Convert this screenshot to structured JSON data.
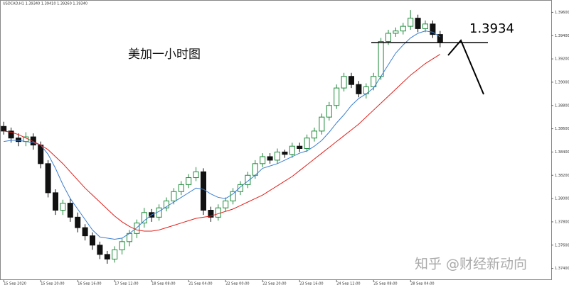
{
  "chart_data": {
    "type": "candlestick",
    "symbol_info": "USDCAD,H1  1.39340 1.39410 1.39260 1.39340",
    "title": "美加一小时图",
    "watermark": "知乎 @财经新动向",
    "level": 1.3934,
    "up_color": "#1f8a3a",
    "down_color": "#111111",
    "categories": [
      "15 Sep 2020",
      null,
      null,
      null,
      null,
      "15 Sep 20:00",
      null,
      null,
      null,
      null,
      "16 Sep 16:00",
      null,
      null,
      null,
      null,
      "17 Sep 12:00",
      null,
      null,
      null,
      null,
      "18 Sep 08:00",
      null,
      null,
      null,
      null,
      "21 Sep 04:00",
      null,
      null,
      null,
      null,
      "22 Sep 00:00",
      null,
      null,
      null,
      null,
      "22 Sep 20:00",
      null,
      null,
      null,
      null,
      "23 Sep 16:00",
      null,
      null,
      null,
      null,
      "24 Sep 12:00",
      null,
      null,
      null,
      null,
      "25 Sep 08:00",
      null,
      null,
      null,
      null,
      "28 Sep 04:00",
      null,
      null,
      null,
      null
    ],
    "open": [
      1.3862,
      1.3858,
      1.3852,
      1.3849,
      1.3853,
      1.3846,
      1.383,
      1.3805,
      1.379,
      1.3796,
      1.3784,
      1.3775,
      1.3768,
      1.376,
      1.3752,
      1.3748,
      1.3756,
      1.3763,
      1.377,
      1.3779,
      1.3788,
      1.3784,
      1.3792,
      1.3798,
      1.3806,
      1.3812,
      1.3818,
      1.3823,
      1.379,
      1.3784,
      1.3792,
      1.3798,
      1.3806,
      1.3812,
      1.382,
      1.383,
      1.3836,
      1.3833,
      1.384,
      1.3838,
      1.3845,
      1.3843,
      1.3852,
      1.3858,
      1.387,
      1.388,
      1.3895,
      1.3905,
      1.3898,
      1.389,
      1.3896,
      1.3905,
      1.3935,
      1.3942,
      1.3944,
      1.3948,
      1.3955,
      1.3946,
      1.395,
      1.3941
    ],
    "high": [
      1.3866,
      1.3861,
      1.3856,
      1.3857,
      1.3856,
      1.3849,
      1.3833,
      1.3808,
      1.3799,
      1.38,
      1.3788,
      1.3778,
      1.3771,
      1.3763,
      1.3755,
      1.3759,
      1.3766,
      1.3773,
      1.3782,
      1.3792,
      1.3791,
      1.3795,
      1.3801,
      1.3809,
      1.3815,
      1.3821,
      1.3827,
      1.3826,
      1.3793,
      1.3795,
      1.3801,
      1.3809,
      1.3815,
      1.3823,
      1.3833,
      1.3839,
      1.3839,
      1.3843,
      1.3842,
      1.3848,
      1.3848,
      1.3855,
      1.3861,
      1.3873,
      1.3883,
      1.3898,
      1.3908,
      1.3908,
      1.3901,
      1.3899,
      1.3908,
      1.3938,
      1.3945,
      1.3947,
      1.3951,
      1.3962,
      1.3958,
      1.3953,
      1.3953,
      1.3944
    ],
    "low": [
      1.3855,
      1.3848,
      1.3845,
      1.3845,
      1.3842,
      1.3826,
      1.3801,
      1.3786,
      1.3786,
      1.378,
      1.3771,
      1.3764,
      1.3756,
      1.3748,
      1.3744,
      1.3745,
      1.3752,
      1.3759,
      1.3766,
      1.3775,
      1.378,
      1.3781,
      1.3789,
      1.3795,
      1.3803,
      1.3809,
      1.3815,
      1.3786,
      1.378,
      1.3781,
      1.3789,
      1.3795,
      1.3803,
      1.3809,
      1.3817,
      1.3827,
      1.383,
      1.383,
      1.3835,
      1.3835,
      1.384,
      1.384,
      1.3849,
      1.3855,
      1.3867,
      1.3877,
      1.3892,
      1.3895,
      1.3887,
      1.3886,
      1.3893,
      1.3902,
      1.3932,
      1.3939,
      1.3941,
      1.3945,
      1.3943,
      1.3943,
      1.3938,
      1.393
    ],
    "close": [
      1.3858,
      1.3852,
      1.3849,
      1.3853,
      1.3846,
      1.383,
      1.3805,
      1.379,
      1.3796,
      1.3784,
      1.3775,
      1.3768,
      1.376,
      1.3752,
      1.3748,
      1.3756,
      1.3763,
      1.377,
      1.3779,
      1.3788,
      1.3784,
      1.3792,
      1.3798,
      1.3806,
      1.3812,
      1.3818,
      1.3823,
      1.379,
      1.3784,
      1.3792,
      1.3798,
      1.3806,
      1.3812,
      1.382,
      1.383,
      1.3836,
      1.3833,
      1.384,
      1.3838,
      1.3845,
      1.3843,
      1.3852,
      1.3858,
      1.387,
      1.388,
      1.3895,
      1.3905,
      1.3898,
      1.389,
      1.3896,
      1.3905,
      1.3935,
      1.3942,
      1.3944,
      1.3948,
      1.3955,
      1.3946,
      1.395,
      1.3941,
      1.3934
    ],
    "series": [
      {
        "color": "#3b7fd1",
        "values": [
          1.3849,
          1.385,
          1.385,
          1.3849,
          1.3848,
          1.3846,
          1.3838,
          1.3826,
          1.3812,
          1.38,
          1.3791,
          1.3782,
          1.3773,
          1.3767,
          1.3766,
          1.3765,
          1.3766,
          1.377,
          1.3775,
          1.3781,
          1.3786,
          1.3789,
          1.3793,
          1.3797,
          1.3801,
          1.3805,
          1.3809,
          1.3808,
          1.3804,
          1.3801,
          1.38,
          1.3804,
          1.381,
          1.3815,
          1.382,
          1.3826,
          1.3828,
          1.383,
          1.3833,
          1.3836,
          1.3839,
          1.3841,
          1.3845,
          1.385,
          1.3857,
          1.3865,
          1.3872,
          1.388,
          1.3886,
          1.389,
          1.3895,
          1.3905,
          1.3915,
          1.3925,
          1.3932,
          1.3938,
          1.3942,
          1.3944,
          1.3943,
          1.3939
        ]
      },
      {
        "color": "#e0201b",
        "values": [
          1.3858,
          1.3857,
          1.3855,
          1.3852,
          1.3849,
          1.3846,
          1.3842,
          1.3836,
          1.383,
          1.3823,
          1.3816,
          1.3809,
          1.3803,
          1.3797,
          1.3791,
          1.3785,
          1.378,
          1.3776,
          1.3773,
          1.3772,
          1.3772,
          1.3773,
          1.3775,
          1.3777,
          1.3779,
          1.3781,
          1.3783,
          1.3784,
          1.3785,
          1.3787,
          1.3789,
          1.3791,
          1.3794,
          1.3797,
          1.38,
          1.3803,
          1.3807,
          1.3811,
          1.3815,
          1.3819,
          1.3824,
          1.3829,
          1.3834,
          1.3839,
          1.3844,
          1.3849,
          1.3854,
          1.3859,
          1.3864,
          1.387,
          1.3876,
          1.3882,
          1.3888,
          1.3894,
          1.39,
          1.3906,
          1.3911,
          1.3916,
          1.392,
          1.3924
        ]
      }
    ],
    "ylim": [
      1.373,
      1.397
    ],
    "yticks": [
      {
        "value": 1.374,
        "label": "1.37400"
      },
      {
        "value": 1.376,
        "label": "1.37600"
      },
      {
        "value": 1.378,
        "label": "1.37800"
      },
      {
        "value": 1.38,
        "label": "1.38000"
      },
      {
        "value": 1.382,
        "label": "1.38200"
      },
      {
        "value": 1.384,
        "label": "1.38400"
      },
      {
        "value": 1.386,
        "label": "1.38600"
      },
      {
        "value": 1.388,
        "label": "1.38800"
      },
      {
        "value": 1.39,
        "label": "1.39000"
      },
      {
        "value": 1.392,
        "label": "1.39200"
      },
      {
        "value": 1.394,
        "label": "1.39400"
      },
      {
        "value": 1.396,
        "label": "1.39600"
      }
    ]
  }
}
